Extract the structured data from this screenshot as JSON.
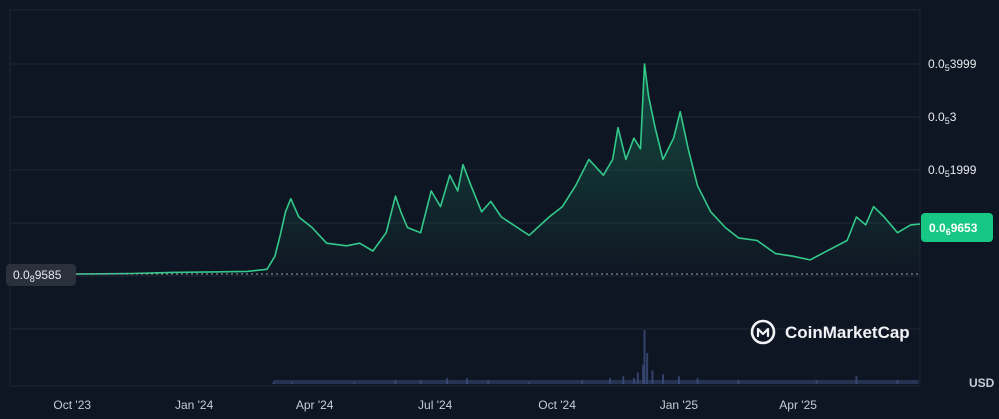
{
  "chart_data": {
    "type": "area",
    "x_ticks": [
      "Oct '23",
      "Jan '24",
      "Apr '24",
      "Jul '24",
      "Oct '24",
      "Jan '25",
      "Apr '25"
    ],
    "y_ticks": [
      {
        "base": "0.0",
        "sub": "5",
        "rest": "3999",
        "value": 3.99e-06
      },
      {
        "base": "0.0",
        "sub": "5",
        "rest": "3",
        "value": 3e-06
      },
      {
        "base": "0.0",
        "sub": "5",
        "rest": "1999",
        "value": 2e-06
      }
    ],
    "current_price": {
      "base": "0.0",
      "sub": "6",
      "rest": "9653",
      "value": 9.653e-07
    },
    "start_price": {
      "base": "0.0",
      "sub": "8",
      "rest": "9585",
      "value": 9.585e-09
    },
    "currency": "USD",
    "watermark": "CoinMarketCap",
    "colors": {
      "line": "#33c98a",
      "badge": "#17c784",
      "background": "#0f1623",
      "volume": "#3b4a78"
    },
    "series": [
      {
        "values": [
          [
            "2023-08-20",
            9.6e-09
          ],
          [
            "2023-09-15",
            1e-08
          ],
          [
            "2023-10-15",
            1.2e-08
          ],
          [
            "2023-11-15",
            2e-08
          ],
          [
            "2023-12-15",
            4e-08
          ],
          [
            "2024-01-15",
            5e-08
          ],
          [
            "2024-02-10",
            6e-08
          ],
          [
            "2024-02-25",
            1e-07
          ],
          [
            "2024-03-02",
            3.5e-07
          ],
          [
            "2024-03-06",
            7.5e-07
          ],
          [
            "2024-03-10",
            1.2e-06
          ],
          [
            "2024-03-14",
            1.45e-06
          ],
          [
            "2024-03-20",
            1.1e-06
          ],
          [
            "2024-03-30",
            9e-07
          ],
          [
            "2024-04-10",
            6e-07
          ],
          [
            "2024-04-25",
            5.5e-07
          ],
          [
            "2024-05-05",
            6e-07
          ],
          [
            "2024-05-15",
            4.5e-07
          ],
          [
            "2024-05-25",
            8e-07
          ],
          [
            "2024-06-01",
            1.5e-06
          ],
          [
            "2024-06-05",
            1.2e-06
          ],
          [
            "2024-06-10",
            9e-07
          ],
          [
            "2024-06-20",
            8e-07
          ],
          [
            "2024-06-28",
            1.6e-06
          ],
          [
            "2024-07-05",
            1.3e-06
          ],
          [
            "2024-07-12",
            1.9e-06
          ],
          [
            "2024-07-18",
            1.6e-06
          ],
          [
            "2024-07-22",
            2.1e-06
          ],
          [
            "2024-07-28",
            1.7e-06
          ],
          [
            "2024-08-05",
            1.2e-06
          ],
          [
            "2024-08-12",
            1.4e-06
          ],
          [
            "2024-08-20",
            1.1e-06
          ],
          [
            "2024-09-01",
            9e-07
          ],
          [
            "2024-09-10",
            7.5e-07
          ],
          [
            "2024-09-25",
            1.1e-06
          ],
          [
            "2024-10-05",
            1.3e-06
          ],
          [
            "2024-10-15",
            1.7e-06
          ],
          [
            "2024-10-25",
            2.2e-06
          ],
          [
            "2024-11-05",
            1.9e-06
          ],
          [
            "2024-11-12",
            2.2e-06
          ],
          [
            "2024-11-16",
            2.8e-06
          ],
          [
            "2024-11-22",
            2.2e-06
          ],
          [
            "2024-11-28",
            2.6e-06
          ],
          [
            "2024-12-03",
            2.4e-06
          ],
          [
            "2024-12-06",
            4e-06
          ],
          [
            "2024-12-09",
            3.4e-06
          ],
          [
            "2024-12-14",
            2.8e-06
          ],
          [
            "2024-12-20",
            2.2e-06
          ],
          [
            "2024-12-28",
            2.6e-06
          ],
          [
            "2025-01-02",
            3.1e-06
          ],
          [
            "2025-01-08",
            2.4e-06
          ],
          [
            "2025-01-15",
            1.7e-06
          ],
          [
            "2025-01-25",
            1.2e-06
          ],
          [
            "2025-02-05",
            9e-07
          ],
          [
            "2025-02-15",
            7e-07
          ],
          [
            "2025-03-01",
            6.5e-07
          ],
          [
            "2025-03-15",
            4e-07
          ],
          [
            "2025-03-28",
            3.5e-07
          ],
          [
            "2025-04-10",
            2.8e-07
          ],
          [
            "2025-04-25",
            4.8e-07
          ],
          [
            "2025-05-08",
            6.5e-07
          ],
          [
            "2025-05-15",
            1.1e-06
          ],
          [
            "2025-05-22",
            9.5e-07
          ],
          [
            "2025-05-28",
            1.3e-06
          ],
          [
            "2025-06-05",
            1.1e-06
          ],
          [
            "2025-06-15",
            8e-07
          ],
          [
            "2025-06-25",
            9.5e-07
          ],
          [
            "2025-07-02",
            9.653e-07
          ]
        ]
      }
    ],
    "volume": {
      "values": [
        [
          "2024-03-01",
          1
        ],
        [
          "2024-03-15",
          1
        ],
        [
          "2024-05-01",
          1
        ],
        [
          "2024-06-01",
          2
        ],
        [
          "2024-06-20",
          2
        ],
        [
          "2024-07-10",
          3
        ],
        [
          "2024-07-25",
          3
        ],
        [
          "2024-08-10",
          2
        ],
        [
          "2024-09-10",
          1
        ],
        [
          "2024-10-20",
          2
        ],
        [
          "2024-11-10",
          3
        ],
        [
          "2024-11-20",
          4
        ],
        [
          "2024-11-28",
          3
        ],
        [
          "2024-12-01",
          6
        ],
        [
          "2024-12-05",
          10
        ],
        [
          "2024-12-06",
          28
        ],
        [
          "2024-12-08",
          16
        ],
        [
          "2024-12-12",
          7
        ],
        [
          "2024-12-20",
          5
        ],
        [
          "2025-01-01",
          4
        ],
        [
          "2025-01-15",
          3
        ],
        [
          "2025-02-15",
          2
        ],
        [
          "2025-04-15",
          2
        ],
        [
          "2025-05-15",
          4
        ],
        [
          "2025-06-15",
          2
        ]
      ]
    },
    "grid": true,
    "legend": "none"
  }
}
